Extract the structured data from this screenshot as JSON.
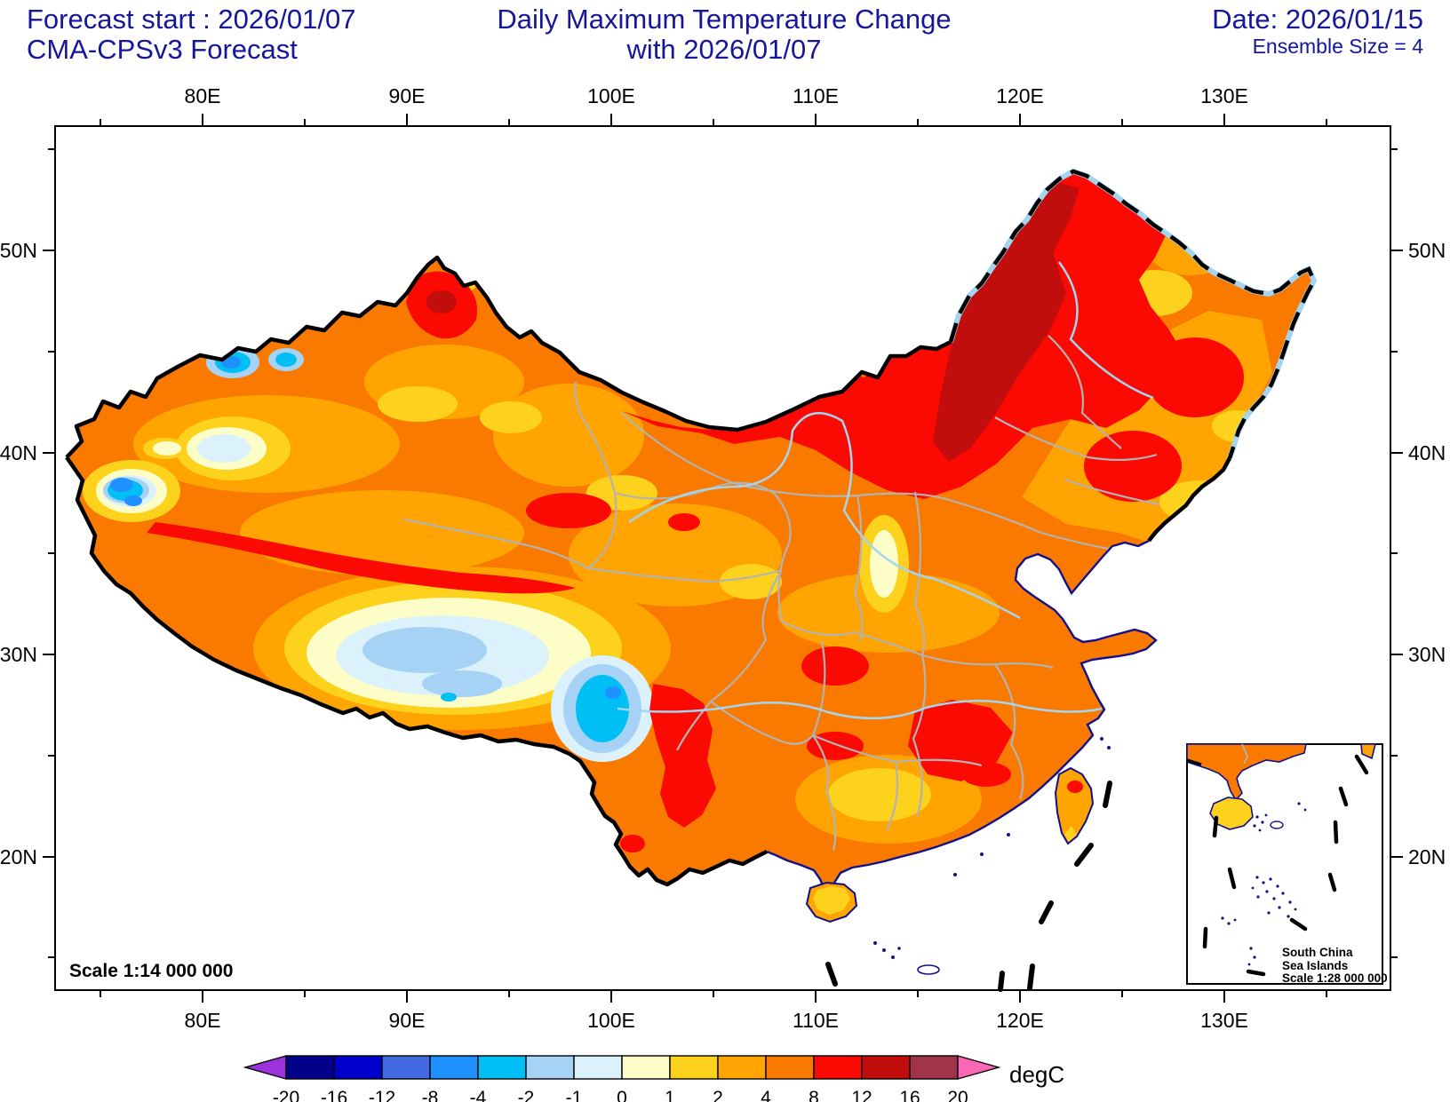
{
  "header": {
    "forecast_start": "Forecast start : 2026/01/07",
    "model": "CMA-CPSv3 Forecast",
    "title_line1": "Daily Maximum Temperature Change",
    "title_line2": "with 2026/01/07",
    "date": "Date: 2026/01/15",
    "ensemble": "Ensemble Size = 4",
    "text_color": "#16169B"
  },
  "map": {
    "scale_label": "Scale 1:14 000 000",
    "inset": {
      "line1": "South China",
      "line2": "Sea Islands",
      "line3": "Scale 1:28 000 000"
    },
    "axis": {
      "lon_labels": [
        "80E",
        "90E",
        "100E",
        "110E",
        "120E",
        "130E"
      ],
      "lat_labels": [
        "50N",
        "40N",
        "30N",
        "20N"
      ]
    },
    "boundary_colors": {
      "country_border": "#000000",
      "province_border": "#B3B3B3",
      "coastline": "#10108F",
      "river": "#A5D4EF"
    }
  },
  "colorbar": {
    "unit": "degC",
    "levels": [
      "-20",
      "-16",
      "-12",
      "-8",
      "-4",
      "-2",
      "-1",
      "0",
      "1",
      "2",
      "4",
      "8",
      "12",
      "16",
      "20"
    ],
    "colors": [
      "#00008B",
      "#0000CD",
      "#4169E1",
      "#1E90FF",
      "#00BFF5",
      "#A6D3F5",
      "#DBF1FC",
      "#FDFDC8",
      "#FCD21D",
      "#FFA400",
      "#FA7A00",
      "#FA0A02",
      "#C20D0D",
      "#A1344A"
    ],
    "under_color": "#9C31DE",
    "over_color": "#F868B6"
  }
}
